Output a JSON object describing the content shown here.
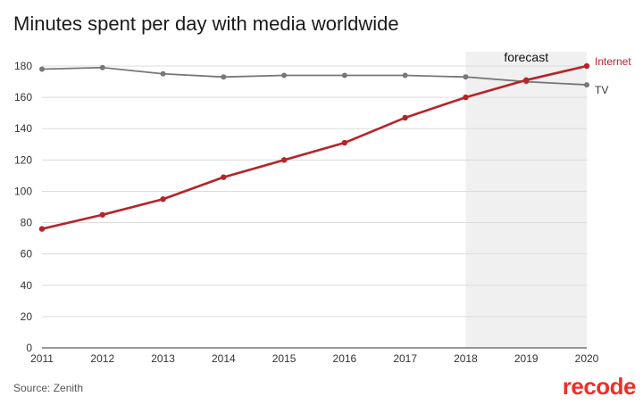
{
  "title": "Minutes spent per day with media worldwide",
  "source": "Source: Zenith",
  "logo": "recode",
  "chart_data": {
    "type": "line",
    "x": [
      2011,
      2012,
      2013,
      2014,
      2015,
      2016,
      2017,
      2018,
      2019,
      2020
    ],
    "ylim": [
      0,
      180
    ],
    "yticks": [
      0,
      20,
      40,
      60,
      80,
      100,
      120,
      140,
      160,
      180
    ],
    "grid": true,
    "forecast": {
      "label": "forecast",
      "from": 2018,
      "to": 2020,
      "color": "#f0f0f0"
    },
    "series": [
      {
        "name": "TV",
        "color": "#777777",
        "values": [
          178,
          179,
          175,
          173,
          174,
          174,
          174,
          173,
          170,
          168
        ]
      },
      {
        "name": "Internet",
        "color": "#b5242a",
        "values": [
          76,
          85,
          95,
          109,
          120,
          131,
          147,
          160,
          171,
          180
        ]
      }
    ]
  }
}
